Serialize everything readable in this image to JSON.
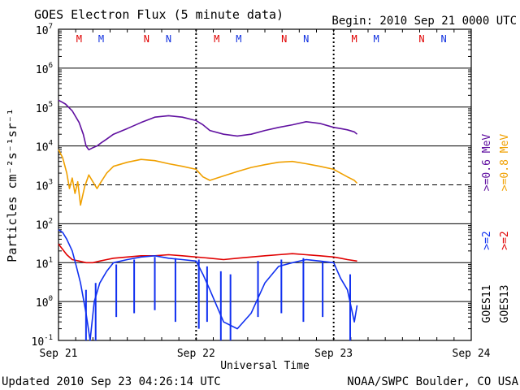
{
  "header": {
    "title": "GOES Electron Flux (5 minute data)",
    "begin": "Begin: 2010 Sep 21 0000 UTC"
  },
  "footer": {
    "updated": "Updated 2010 Sep 23 04:26:14 UTC",
    "credit": "NOAA/SWPC Boulder, CO USA"
  },
  "chart_data": {
    "type": "line",
    "xlabel": "Universal Time",
    "ylabel": "Particles cm⁻²s⁻¹sr⁻¹",
    "x_unit": "days since 2010 Sep 21 00:00 UTC",
    "xlim": [
      0,
      3
    ],
    "x_ticks": [
      "Sep 21",
      "Sep 22",
      "Sep 23",
      "Sep 24"
    ],
    "yscale": "log",
    "ylim": [
      0.1,
      10000000
    ],
    "y_ticks": [
      {
        "base": "10",
        "exp": "-1"
      },
      {
        "base": "10",
        "exp": "0"
      },
      {
        "base": "10",
        "exp": "1"
      },
      {
        "base": "10",
        "exp": "2"
      },
      {
        "base": "10",
        "exp": "3"
      },
      {
        "base": "10",
        "exp": "4"
      },
      {
        "base": "10",
        "exp": "5"
      },
      {
        "base": "10",
        "exp": "6"
      },
      {
        "base": "10",
        "exp": "7"
      }
    ],
    "threshold_line": 1000,
    "markers": [
      {
        "label": "M",
        "x": 0.15,
        "color": "#e00000"
      },
      {
        "label": "M",
        "x": 0.31,
        "color": "#1030e0"
      },
      {
        "label": "N",
        "x": 0.64,
        "color": "#e00000"
      },
      {
        "label": "N",
        "x": 0.8,
        "color": "#1030e0"
      },
      {
        "label": "M",
        "x": 1.15,
        "color": "#e00000"
      },
      {
        "label": "M",
        "x": 1.31,
        "color": "#1030e0"
      },
      {
        "label": "N",
        "x": 1.64,
        "color": "#e00000"
      },
      {
        "label": "N",
        "x": 1.8,
        "color": "#1030e0"
      },
      {
        "label": "M",
        "x": 2.15,
        "color": "#e00000"
      },
      {
        "label": "M",
        "x": 2.31,
        "color": "#1030e0"
      },
      {
        "label": "N",
        "x": 2.64,
        "color": "#e00000"
      },
      {
        "label": "N",
        "x": 2.8,
        "color": "#1030e0"
      }
    ],
    "dotted_verticals": [
      1.0,
      2.0
    ],
    "series": [
      {
        "name": ">=0.6 MeV",
        "color": "#6010a0",
        "x": [
          0.0,
          0.05,
          0.1,
          0.15,
          0.18,
          0.2,
          0.22,
          0.25,
          0.28,
          0.31,
          0.35,
          0.4,
          0.5,
          0.6,
          0.7,
          0.8,
          0.9,
          1.0,
          1.05,
          1.1,
          1.2,
          1.3,
          1.4,
          1.5,
          1.6,
          1.7,
          1.8,
          1.9,
          2.0,
          2.05,
          2.1,
          2.15,
          2.17
        ],
        "values": [
          150000,
          120000,
          80000,
          40000,
          20000,
          10000,
          8000,
          9000,
          10000,
          12000,
          15000,
          20000,
          28000,
          40000,
          55000,
          60000,
          55000,
          45000,
          35000,
          25000,
          20000,
          18000,
          20000,
          25000,
          30000,
          35000,
          42000,
          38000,
          30000,
          28000,
          26000,
          23000,
          20000
        ]
      },
      {
        "name": ">=0.8 MeV",
        "color": "#f0a000",
        "x": [
          0.0,
          0.03,
          0.06,
          0.08,
          0.1,
          0.12,
          0.14,
          0.16,
          0.19,
          0.22,
          0.25,
          0.28,
          0.31,
          0.35,
          0.4,
          0.5,
          0.6,
          0.7,
          0.8,
          0.9,
          1.0,
          1.05,
          1.1,
          1.2,
          1.3,
          1.4,
          1.5,
          1.6,
          1.7,
          1.8,
          1.9,
          2.0,
          2.05,
          2.1,
          2.15,
          2.17
        ],
        "values": [
          8000,
          5000,
          2000,
          800,
          1500,
          600,
          1200,
          300,
          900,
          1800,
          1200,
          800,
          1200,
          2000,
          3000,
          3800,
          4500,
          4200,
          3500,
          3000,
          2500,
          1600,
          1300,
          1700,
          2200,
          2800,
          3300,
          3800,
          4000,
          3500,
          3000,
          2500,
          2000,
          1600,
          1300,
          1100
        ]
      },
      {
        "name": ">=2 MeV (GOES13)",
        "color": "#e00000",
        "x": [
          0.0,
          0.03,
          0.06,
          0.1,
          0.15,
          0.2,
          0.25,
          0.3,
          0.35,
          0.4,
          0.5,
          0.6,
          0.7,
          0.8,
          0.9,
          1.0,
          1.1,
          1.2,
          1.3,
          1.4,
          1.5,
          1.6,
          1.7,
          1.8,
          1.9,
          2.0,
          2.05,
          2.1,
          2.17
        ],
        "values": [
          30,
          22,
          16,
          12,
          11,
          10,
          10,
          11,
          12,
          13,
          14,
          15,
          15,
          16,
          15,
          14,
          13,
          12,
          13,
          14,
          15,
          16,
          17,
          16,
          15,
          14,
          13,
          12,
          11
        ]
      },
      {
        "name": ">=2 MeV (GOES11)",
        "color": "#1030f0",
        "x": [
          0.0,
          0.03,
          0.06,
          0.1,
          0.13,
          0.16,
          0.2,
          0.23,
          0.26,
          0.3,
          0.35,
          0.4,
          0.5,
          0.6,
          0.7,
          0.8,
          0.9,
          1.0,
          1.05,
          1.1,
          1.2,
          1.3,
          1.4,
          1.5,
          1.6,
          1.7,
          1.8,
          1.9,
          2.0,
          2.05,
          2.1,
          2.15,
          2.17
        ],
        "values": [
          70,
          60,
          40,
          20,
          8,
          3,
          0.5,
          0.1,
          1,
          3,
          6,
          10,
          12,
          14,
          15,
          13,
          12,
          11,
          5,
          2,
          0.3,
          0.2,
          0.5,
          3,
          8,
          10,
          12,
          11,
          10,
          4,
          2,
          0.3,
          0.8
        ],
        "spikes": [
          {
            "x": 0.2,
            "values": [
              0.1,
              2
            ]
          },
          {
            "x": 0.27,
            "values": [
              0.1,
              3
            ]
          },
          {
            "x": 0.42,
            "values": [
              0.4,
              9
            ]
          },
          {
            "x": 0.55,
            "values": [
              0.5,
              12
            ]
          },
          {
            "x": 0.7,
            "values": [
              0.6,
              14
            ]
          },
          {
            "x": 0.85,
            "values": [
              0.3,
              13
            ]
          },
          {
            "x": 1.02,
            "values": [
              0.2,
              12
            ]
          },
          {
            "x": 1.08,
            "values": [
              0.3,
              8
            ]
          },
          {
            "x": 1.18,
            "values": [
              0.1,
              6
            ]
          },
          {
            "x": 1.25,
            "values": [
              0.1,
              5
            ]
          },
          {
            "x": 1.45,
            "values": [
              0.4,
              11
            ]
          },
          {
            "x": 1.62,
            "values": [
              0.5,
              12
            ]
          },
          {
            "x": 1.78,
            "values": [
              0.3,
              13
            ]
          },
          {
            "x": 1.92,
            "values": [
              0.4,
              11
            ]
          },
          {
            "x": 2.12,
            "values": [
              0.1,
              5
            ]
          }
        ]
      }
    ],
    "right_labels": {
      "energy_goes11_a": ">=2",
      "energy_goes11_b": ">=0.6 MeV",
      "energy_goes13_a": ">=2",
      "energy_goes13_b": ">=0.8 MeV",
      "sat_goes11": "GOES11",
      "sat_goes13": "GOES13"
    },
    "colors": {
      "purple": "#6010a0",
      "orange": "#f0a000",
      "red": "#e00000",
      "blue": "#1030f0"
    }
  }
}
